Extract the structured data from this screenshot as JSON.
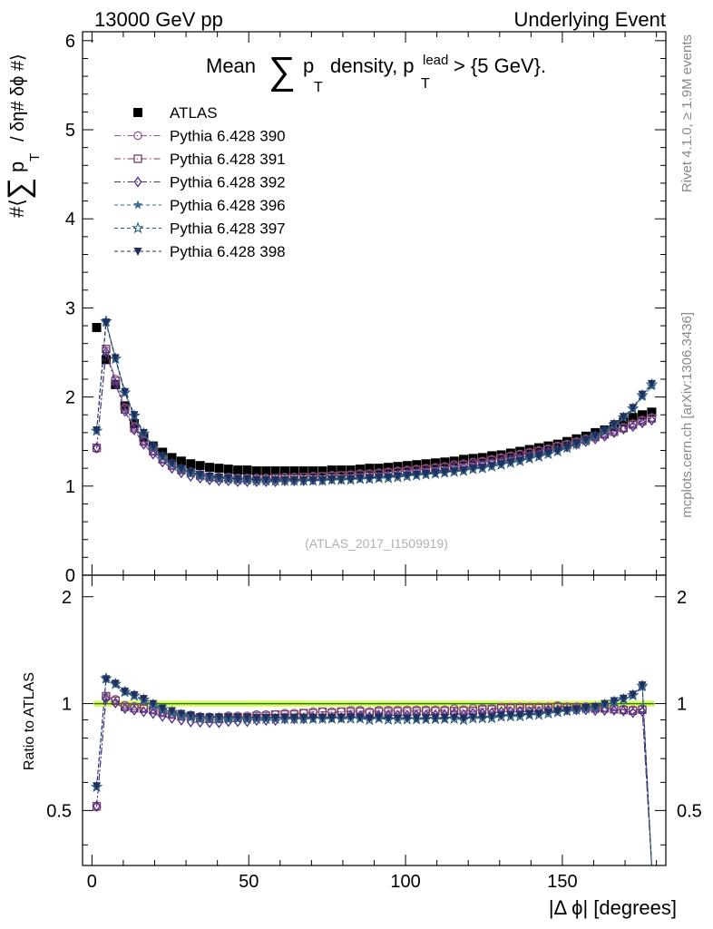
{
  "header": {
    "left": "13000 GeV pp",
    "right": "Underlying Event"
  },
  "side_labels": {
    "rivet": "Rivet 4.1.0, ≥ 1.9M events",
    "mcplots": "mcplots.cern.ch [arXiv:1306.3436]"
  },
  "chart_data": {
    "type": "scatter",
    "title_parts": {
      "prefix": "Mean",
      "sum": "∑",
      "p": "p",
      "sub_T": "T",
      "mid": "density, p",
      "sup_lead": "lead",
      "suffix": "> {5 GeV}."
    },
    "ylabel_parts": {
      "open": "#⟨",
      "sum": "∑",
      "p": "p",
      "sub_T": "T",
      "rest": "/ δη# δϕ #⟩"
    },
    "ratio_ylabel": "Ratio to ATLAS",
    "xlabel": "|Δ ϕ| [degrees]",
    "watermark": "(ATLAS_2017_I1509919)",
    "xlim": [
      -3,
      183
    ],
    "ylim_main": [
      0,
      6.1
    ],
    "ylim_ratio": [
      0.35,
      2.3
    ],
    "xticks": [
      0,
      50,
      100,
      150
    ],
    "yticks_main": [
      0,
      1,
      2,
      3,
      4,
      5,
      6
    ],
    "yticks_ratio_labels": [
      0.5,
      1,
      2
    ],
    "x": [
      1.5,
      4.5,
      7.5,
      10.5,
      13.5,
      16.5,
      19.5,
      22.5,
      25.5,
      28.5,
      31.5,
      34.5,
      37.5,
      40.5,
      43.5,
      46.5,
      49.5,
      52.5,
      55.5,
      58.5,
      61.5,
      64.5,
      67.5,
      70.5,
      73.5,
      76.5,
      79.5,
      82.5,
      85.5,
      88.5,
      91.5,
      94.5,
      97.5,
      100.5,
      103.5,
      106.5,
      109.5,
      112.5,
      115.5,
      118.5,
      121.5,
      124.5,
      127.5,
      130.5,
      133.5,
      136.5,
      139.5,
      142.5,
      145.5,
      148.5,
      151.5,
      154.5,
      157.5,
      160.5,
      163.5,
      166.5,
      169.5,
      172.5,
      175.5,
      178.5
    ],
    "series": [
      {
        "name": "ATLAS",
        "marker": "filled-square",
        "color": "#000000",
        "values": [
          2.78,
          2.42,
          2.14,
          1.9,
          1.7,
          1.55,
          1.45,
          1.38,
          1.32,
          1.28,
          1.25,
          1.23,
          1.21,
          1.2,
          1.19,
          1.18,
          1.18,
          1.17,
          1.17,
          1.17,
          1.17,
          1.17,
          1.17,
          1.17,
          1.17,
          1.18,
          1.18,
          1.18,
          1.19,
          1.2,
          1.2,
          1.21,
          1.22,
          1.23,
          1.24,
          1.25,
          1.26,
          1.27,
          1.28,
          1.3,
          1.31,
          1.32,
          1.34,
          1.35,
          1.37,
          1.39,
          1.41,
          1.43,
          1.45,
          1.47,
          1.5,
          1.53,
          1.56,
          1.6,
          1.63,
          1.67,
          1.72,
          1.77,
          1.8,
          1.83
        ]
      },
      {
        "name": "Pythia 6.428 390",
        "marker": "open-circle",
        "color": "#8e5a95",
        "values": [
          1.42,
          2.52,
          2.2,
          1.88,
          1.67,
          1.51,
          1.4,
          1.31,
          1.24,
          1.19,
          1.16,
          1.13,
          1.11,
          1.1,
          1.1,
          1.09,
          1.09,
          1.09,
          1.09,
          1.09,
          1.1,
          1.1,
          1.1,
          1.11,
          1.11,
          1.12,
          1.12,
          1.13,
          1.14,
          1.14,
          1.15,
          1.16,
          1.17,
          1.18,
          1.19,
          1.2,
          1.21,
          1.22,
          1.24,
          1.25,
          1.27,
          1.28,
          1.3,
          1.32,
          1.34,
          1.36,
          1.38,
          1.4,
          1.42,
          1.45,
          1.47,
          1.5,
          1.53,
          1.56,
          1.59,
          1.63,
          1.66,
          1.7,
          1.74,
          1.77
        ]
      },
      {
        "name": "Pythia 6.428 391",
        "marker": "open-square",
        "color": "#7c3d63",
        "values": [
          1.43,
          2.54,
          2.18,
          1.86,
          1.65,
          1.5,
          1.39,
          1.3,
          1.23,
          1.18,
          1.15,
          1.12,
          1.1,
          1.09,
          1.09,
          1.08,
          1.08,
          1.08,
          1.08,
          1.09,
          1.09,
          1.09,
          1.1,
          1.1,
          1.11,
          1.11,
          1.12,
          1.12,
          1.13,
          1.13,
          1.14,
          1.15,
          1.16,
          1.17,
          1.18,
          1.19,
          1.2,
          1.21,
          1.22,
          1.24,
          1.25,
          1.27,
          1.29,
          1.31,
          1.33,
          1.35,
          1.37,
          1.39,
          1.41,
          1.44,
          1.46,
          1.49,
          1.52,
          1.55,
          1.58,
          1.61,
          1.65,
          1.69,
          1.73,
          1.76
        ]
      },
      {
        "name": "Pythia 6.428 392",
        "marker": "open-diamond",
        "color": "#4b2d8c",
        "values": [
          1.43,
          2.5,
          2.15,
          1.84,
          1.63,
          1.47,
          1.36,
          1.27,
          1.2,
          1.15,
          1.11,
          1.09,
          1.07,
          1.06,
          1.06,
          1.05,
          1.05,
          1.05,
          1.05,
          1.05,
          1.06,
          1.06,
          1.06,
          1.07,
          1.07,
          1.08,
          1.08,
          1.09,
          1.1,
          1.1,
          1.11,
          1.12,
          1.13,
          1.14,
          1.15,
          1.16,
          1.17,
          1.18,
          1.2,
          1.21,
          1.23,
          1.24,
          1.26,
          1.28,
          1.3,
          1.32,
          1.34,
          1.36,
          1.39,
          1.41,
          1.44,
          1.47,
          1.5,
          1.53,
          1.56,
          1.6,
          1.64,
          1.67,
          1.71,
          1.74
        ]
      },
      {
        "name": "Pythia 6.428 396",
        "marker": "filled-star",
        "color": "#3b6e8f",
        "values": [
          1.62,
          2.83,
          2.42,
          2.04,
          1.78,
          1.58,
          1.43,
          1.32,
          1.24,
          1.18,
          1.14,
          1.11,
          1.09,
          1.08,
          1.07,
          1.07,
          1.06,
          1.06,
          1.06,
          1.06,
          1.06,
          1.06,
          1.06,
          1.06,
          1.07,
          1.07,
          1.07,
          1.08,
          1.08,
          1.09,
          1.09,
          1.1,
          1.11,
          1.12,
          1.12,
          1.13,
          1.14,
          1.15,
          1.17,
          1.18,
          1.2,
          1.21,
          1.23,
          1.25,
          1.27,
          1.29,
          1.31,
          1.34,
          1.37,
          1.4,
          1.43,
          1.47,
          1.51,
          1.56,
          1.62,
          1.69,
          1.77,
          1.86,
          2.0,
          2.12
        ]
      },
      {
        "name": "Pythia 6.428 397",
        "marker": "open-star",
        "color": "#2e5d80",
        "values": [
          1.62,
          2.85,
          2.43,
          2.05,
          1.79,
          1.59,
          1.44,
          1.33,
          1.25,
          1.19,
          1.15,
          1.12,
          1.1,
          1.09,
          1.08,
          1.07,
          1.07,
          1.06,
          1.06,
          1.06,
          1.06,
          1.06,
          1.06,
          1.06,
          1.06,
          1.07,
          1.07,
          1.07,
          1.08,
          1.08,
          1.09,
          1.09,
          1.1,
          1.11,
          1.12,
          1.13,
          1.14,
          1.15,
          1.16,
          1.17,
          1.19,
          1.2,
          1.22,
          1.24,
          1.26,
          1.28,
          1.31,
          1.33,
          1.36,
          1.39,
          1.43,
          1.47,
          1.51,
          1.56,
          1.62,
          1.69,
          1.77,
          1.87,
          2.02,
          2.14
        ]
      },
      {
        "name": "Pythia 6.428 398",
        "marker": "filled-triangle-down",
        "color": "#1f2f5e",
        "values": [
          1.63,
          2.84,
          2.44,
          2.06,
          1.8,
          1.6,
          1.45,
          1.34,
          1.26,
          1.2,
          1.16,
          1.13,
          1.11,
          1.1,
          1.09,
          1.08,
          1.08,
          1.07,
          1.07,
          1.07,
          1.07,
          1.07,
          1.07,
          1.07,
          1.07,
          1.08,
          1.08,
          1.08,
          1.09,
          1.09,
          1.1,
          1.1,
          1.11,
          1.12,
          1.13,
          1.14,
          1.15,
          1.16,
          1.17,
          1.18,
          1.2,
          1.21,
          1.23,
          1.25,
          1.27,
          1.29,
          1.32,
          1.34,
          1.37,
          1.4,
          1.44,
          1.48,
          1.52,
          1.57,
          1.63,
          1.7,
          1.78,
          1.88,
          2.03,
          2.15
        ]
      }
    ]
  }
}
